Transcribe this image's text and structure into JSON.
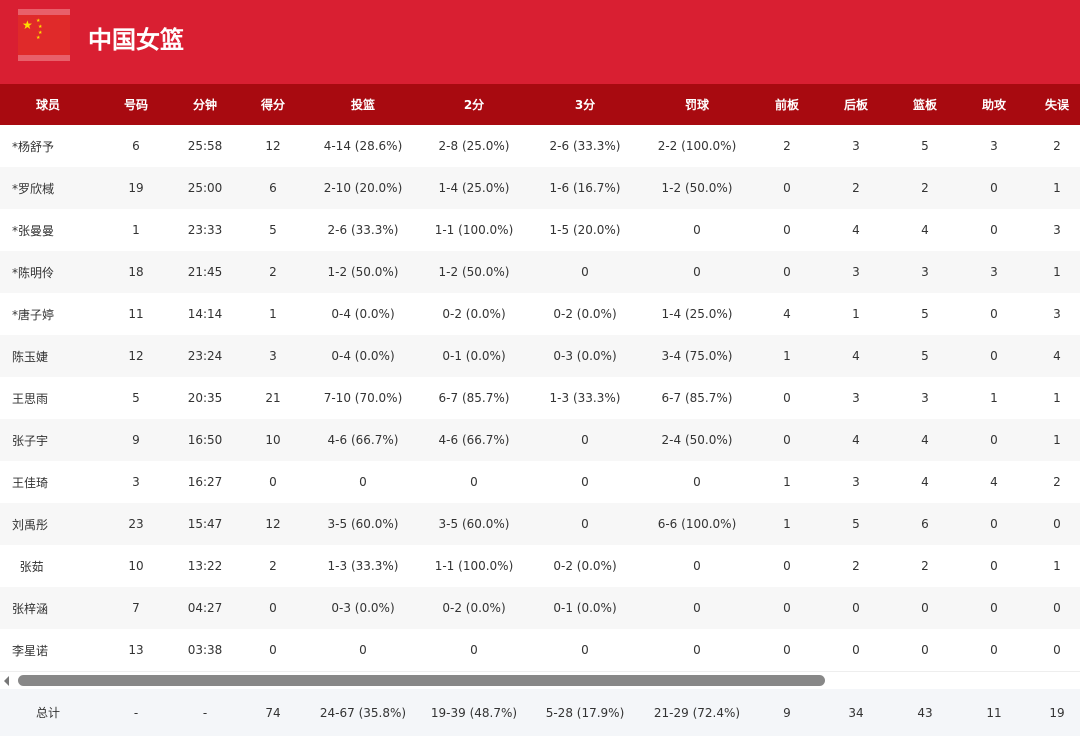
{
  "team": {
    "name": "中国女篮",
    "flag": "china-flag"
  },
  "columns": [
    "球员",
    "号码",
    "分钟",
    "得分",
    "投篮",
    "2分",
    "3分",
    "罚球",
    "前板",
    "后板",
    "篮板",
    "助攻",
    "失误"
  ],
  "rows": [
    [
      "*杨舒予",
      "6",
      "25:58",
      "12",
      "4-14 (28.6%)",
      "2-8 (25.0%)",
      "2-6 (33.3%)",
      "2-2 (100.0%)",
      "2",
      "3",
      "5",
      "3",
      "2"
    ],
    [
      "*罗欣棫",
      "19",
      "25:00",
      "6",
      "2-10 (20.0%)",
      "1-4 (25.0%)",
      "1-6 (16.7%)",
      "1-2 (50.0%)",
      "0",
      "2",
      "2",
      "0",
      "1"
    ],
    [
      "*张曼曼",
      "1",
      "23:33",
      "5",
      "2-6 (33.3%)",
      "1-1 (100.0%)",
      "1-5 (20.0%)",
      "0",
      "0",
      "4",
      "4",
      "0",
      "3"
    ],
    [
      "*陈明伶",
      "18",
      "21:45",
      "2",
      "1-2 (50.0%)",
      "1-2 (50.0%)",
      "0",
      "0",
      "0",
      "3",
      "3",
      "3",
      "1"
    ],
    [
      "*唐子婷",
      "11",
      "14:14",
      "1",
      "0-4 (0.0%)",
      "0-2 (0.0%)",
      "0-2 (0.0%)",
      "1-4 (25.0%)",
      "4",
      "1",
      "5",
      "0",
      "3"
    ],
    [
      "陈玉婕",
      "12",
      "23:24",
      "3",
      "0-4 (0.0%)",
      "0-1 (0.0%)",
      "0-3 (0.0%)",
      "3-4 (75.0%)",
      "1",
      "4",
      "5",
      "0",
      "4"
    ],
    [
      "王思雨",
      "5",
      "20:35",
      "21",
      "7-10 (70.0%)",
      "6-7 (85.7%)",
      "1-3 (33.3%)",
      "6-7 (85.7%)",
      "0",
      "3",
      "3",
      "1",
      "1"
    ],
    [
      "张子宇",
      "9",
      "16:50",
      "10",
      "4-6 (66.7%)",
      "4-6 (66.7%)",
      "0",
      "2-4 (50.0%)",
      "0",
      "4",
      "4",
      "0",
      "1"
    ],
    [
      "王佳琦",
      "3",
      "16:27",
      "0",
      "0",
      "0",
      "0",
      "0",
      "1",
      "3",
      "4",
      "4",
      "2"
    ],
    [
      "刘禹彤",
      "23",
      "15:47",
      "12",
      "3-5 (60.0%)",
      "3-5 (60.0%)",
      "0",
      "6-6 (100.0%)",
      "1",
      "5",
      "6",
      "0",
      "0"
    ],
    [
      "  张茹",
      "10",
      "13:22",
      "2",
      "1-3 (33.3%)",
      "1-1 (100.0%)",
      "0-2 (0.0%)",
      "0",
      "0",
      "2",
      "2",
      "0",
      "1"
    ],
    [
      "张梓涵",
      "7",
      "04:27",
      "0",
      "0-3 (0.0%)",
      "0-2 (0.0%)",
      "0-1 (0.0%)",
      "0",
      "0",
      "0",
      "0",
      "0",
      "0"
    ],
    [
      "李星诺",
      "13",
      "03:38",
      "0",
      "0",
      "0",
      "0",
      "0",
      "0",
      "0",
      "0",
      "0",
      "0"
    ]
  ],
  "total": [
    "总计",
    "-",
    "-",
    "74",
    "24-67 (35.8%)",
    "19-39 (48.7%)",
    "5-28 (17.9%)",
    "21-29 (72.4%)",
    "9",
    "34",
    "43",
    "11",
    "19"
  ],
  "colors": {
    "header": "#d91f32",
    "table_header": "#a80a10"
  }
}
